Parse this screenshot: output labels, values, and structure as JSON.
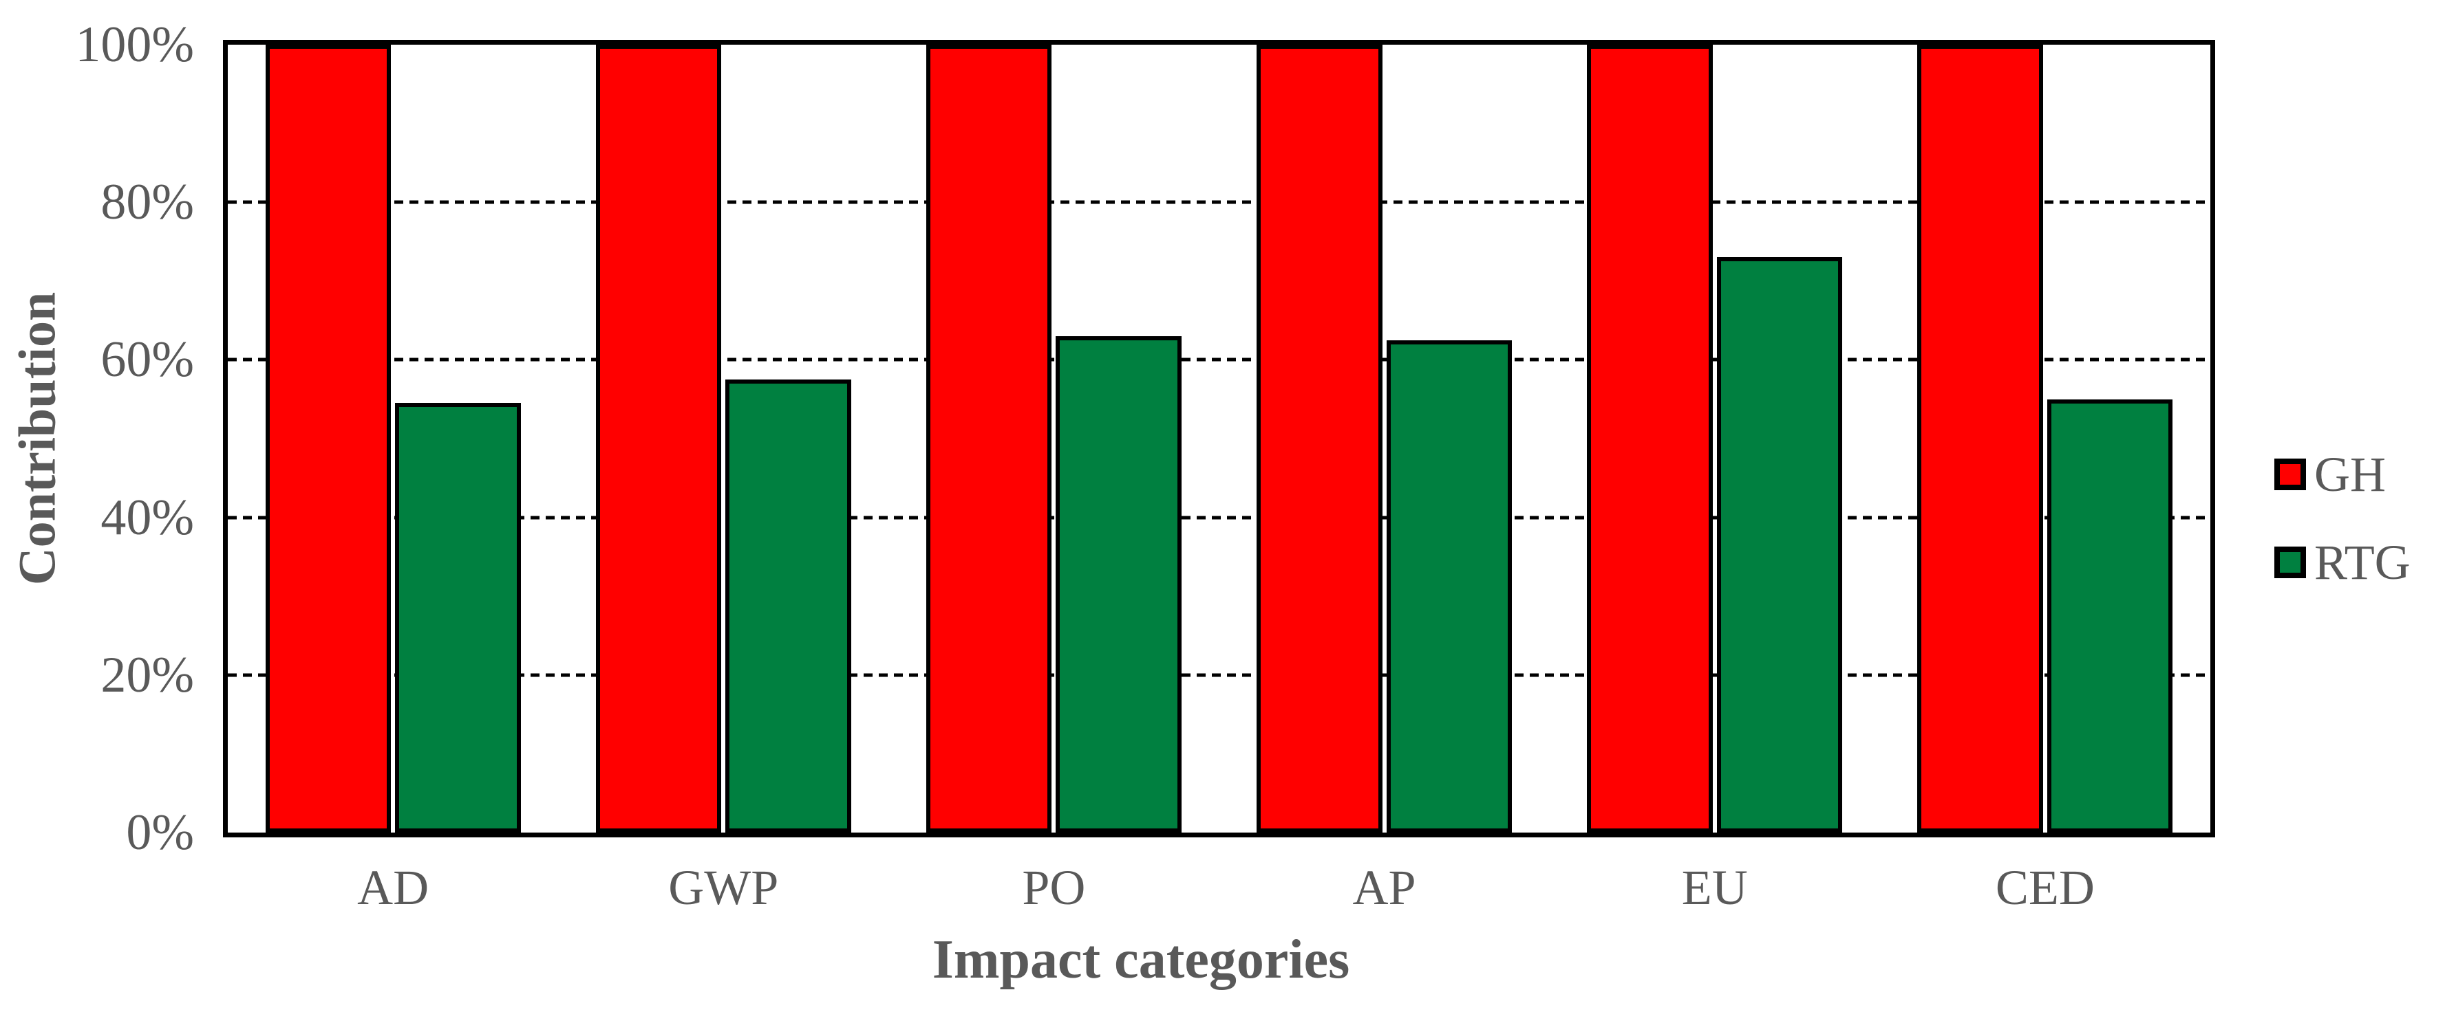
{
  "colors": {
    "gh_red": "#FF0000",
    "rtg_green": "#008040",
    "text_gray": "#595959",
    "axis_black": "#000000",
    "background": "#FFFFFF"
  },
  "chart_data": {
    "type": "bar",
    "title": "",
    "xlabel": "Impact categories",
    "ylabel": "Contribution",
    "categories": [
      "AD",
      "GWP",
      "PO",
      "AP",
      "EU",
      "CED"
    ],
    "series": [
      {
        "name": "GH",
        "color": "#FF0000",
        "values": [
          100,
          100,
          100,
          100,
          100,
          100
        ]
      },
      {
        "name": "RTG",
        "color": "#008040",
        "values": [
          54.5,
          57.5,
          63,
          62.5,
          73,
          55
        ]
      }
    ],
    "value_unit": "percent",
    "y_ticks": [
      "0%",
      "20%",
      "40%",
      "60%",
      "80%",
      "100%"
    ],
    "ylim": [
      0,
      100
    ],
    "grid": "horizontal dashed lines at 20% steps",
    "legend_position": "right",
    "legend_labels": [
      "GH",
      "RTG"
    ]
  }
}
